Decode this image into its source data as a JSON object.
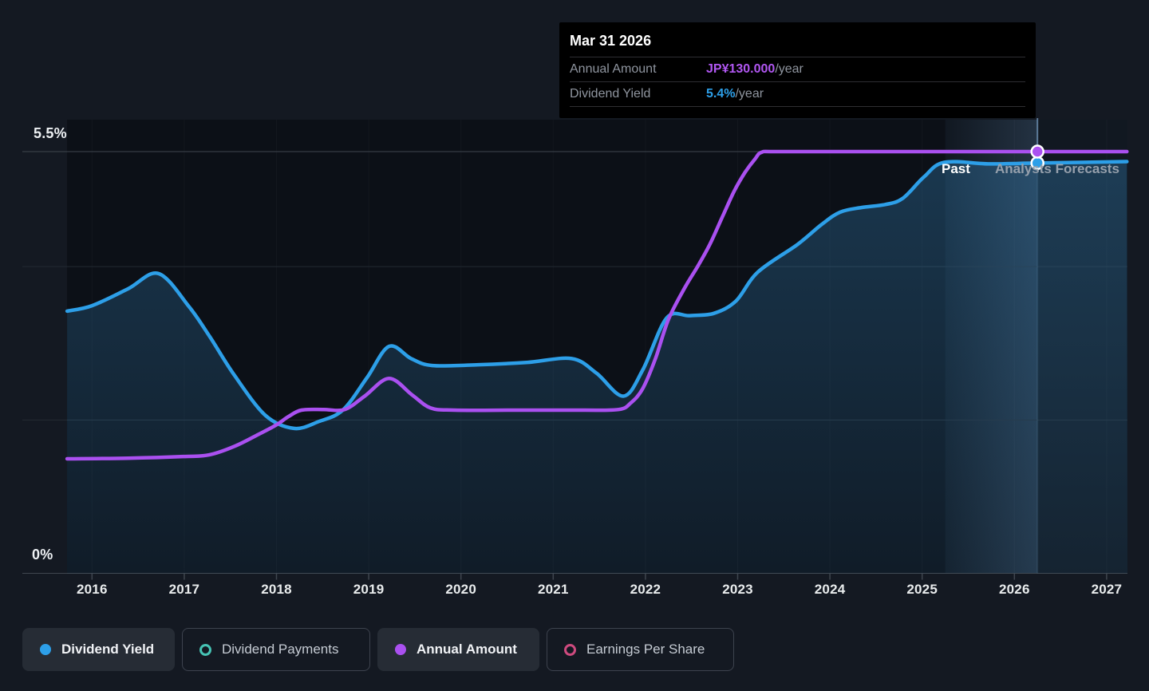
{
  "tooltip": {
    "date": "Mar 31 2026",
    "rows": [
      {
        "label": "Annual Amount",
        "value": "JP¥130.000",
        "suffix": "/year",
        "color": "#b157f2"
      },
      {
        "label": "Dividend Yield",
        "value": "5.4%",
        "suffix": "/year",
        "color": "#2d9fe8"
      }
    ]
  },
  "chart_data": {
    "type": "line",
    "x_axis": {
      "ticks": [
        2016,
        2017,
        2018,
        2019,
        2020,
        2021,
        2022,
        2023,
        2024,
        2025,
        2026,
        2027
      ],
      "xlim": [
        2015.73,
        2027.25
      ]
    },
    "y_axis": {
      "top_label": "5.5%",
      "bottom_label": "0%",
      "ylim_pct": [
        0,
        5.5
      ],
      "gridlines_pct": [
        2,
        4
      ],
      "annual_amount_top_yen": 130
    },
    "regions": {
      "past_label": "Past",
      "forecast_label": "Analysts Forecasts",
      "forecast_start_year": 2025.25
    },
    "marker": {
      "date": "Mar 31 2026",
      "year": 2026.25,
      "dividend_yield_pct": 5.4,
      "annual_amount_yen": 130
    },
    "series": [
      {
        "name": "Dividend Yield",
        "unit": "%",
        "color": "#2d9fe8",
        "area": true,
        "points": [
          [
            2015.73,
            3.42
          ],
          [
            2016.0,
            3.49
          ],
          [
            2016.39,
            3.71
          ],
          [
            2016.72,
            3.91
          ],
          [
            2017.05,
            3.48
          ],
          [
            2017.28,
            3.08
          ],
          [
            2017.54,
            2.59
          ],
          [
            2017.88,
            2.06
          ],
          [
            2018.19,
            1.89
          ],
          [
            2018.46,
            1.98
          ],
          [
            2018.72,
            2.13
          ],
          [
            2018.98,
            2.55
          ],
          [
            2019.22,
            2.96
          ],
          [
            2019.46,
            2.8
          ],
          [
            2019.69,
            2.71
          ],
          [
            2020.19,
            2.72
          ],
          [
            2020.71,
            2.75
          ],
          [
            2021.2,
            2.8
          ],
          [
            2021.47,
            2.61
          ],
          [
            2021.76,
            2.31
          ],
          [
            2021.97,
            2.65
          ],
          [
            2022.23,
            3.33
          ],
          [
            2022.48,
            3.36
          ],
          [
            2022.74,
            3.39
          ],
          [
            2022.98,
            3.55
          ],
          [
            2023.22,
            3.93
          ],
          [
            2023.65,
            4.29
          ],
          [
            2023.91,
            4.55
          ],
          [
            2024.11,
            4.71
          ],
          [
            2024.34,
            4.77
          ],
          [
            2024.6,
            4.81
          ],
          [
            2024.79,
            4.89
          ],
          [
            2025.02,
            5.17
          ],
          [
            2025.24,
            5.36
          ],
          [
            2025.73,
            5.34
          ],
          [
            2026.22,
            5.35
          ],
          [
            2026.72,
            5.36
          ],
          [
            2027.22,
            5.37
          ]
        ]
      },
      {
        "name": "Annual Amount",
        "unit": "JP¥",
        "color": "#aa50f0",
        "area": false,
        "points": [
          [
            2015.73,
            35.3
          ],
          [
            2016.39,
            35.5
          ],
          [
            2016.99,
            36.0
          ],
          [
            2017.27,
            36.5
          ],
          [
            2017.55,
            39.2
          ],
          [
            2017.81,
            42.9
          ],
          [
            2017.99,
            45.6
          ],
          [
            2018.13,
            48.3
          ],
          [
            2018.27,
            50.3
          ],
          [
            2018.51,
            50.5
          ],
          [
            2018.74,
            50.5
          ],
          [
            2018.96,
            54.7
          ],
          [
            2019.22,
            60.1
          ],
          [
            2019.47,
            55.0
          ],
          [
            2019.67,
            51.0
          ],
          [
            2019.93,
            50.3
          ],
          [
            2020.63,
            50.3
          ],
          [
            2021.32,
            50.3
          ],
          [
            2021.71,
            50.5
          ],
          [
            2021.84,
            52.5
          ],
          [
            2021.97,
            56.9
          ],
          [
            2022.11,
            66.3
          ],
          [
            2022.25,
            78.3
          ],
          [
            2022.43,
            88.2
          ],
          [
            2022.57,
            94.8
          ],
          [
            2022.7,
            101.5
          ],
          [
            2022.83,
            109.6
          ],
          [
            2022.96,
            117.7
          ],
          [
            2023.08,
            123.6
          ],
          [
            2023.19,
            127.8
          ],
          [
            2023.26,
            129.8
          ],
          [
            2023.44,
            130
          ],
          [
            2024.52,
            130
          ],
          [
            2025.81,
            130
          ],
          [
            2027.22,
            130
          ]
        ]
      }
    ]
  },
  "legend": {
    "items": [
      {
        "label": "Dividend Yield",
        "color": "#2d9fe8",
        "style": "filled",
        "active": true
      },
      {
        "label": "Dividend Payments",
        "color": "#46c3b4",
        "style": "ring",
        "active": false
      },
      {
        "label": "Annual Amount",
        "color": "#aa50f0",
        "style": "filled",
        "active": true
      },
      {
        "label": "Earnings Per Share",
        "color": "#cd4a7e",
        "style": "ring",
        "active": false
      }
    ]
  },
  "colors": {
    "page_bg": "#141922",
    "plot_bg": "#0c1017",
    "grid_major": "#3f464f",
    "grid_minor": "#232a33",
    "vert_grid": "rgba(255,255,255,0.032)",
    "forecast_overlay": "rgba(126,180,232,0.05)",
    "band_hi": "rgba(126,180,232,0.17)",
    "crosshair": "rgba(150,195,240,0.55)",
    "area_top": "rgba(58,148,210,0.30)",
    "area_bottom": "rgba(58,148,210,0.09)"
  }
}
